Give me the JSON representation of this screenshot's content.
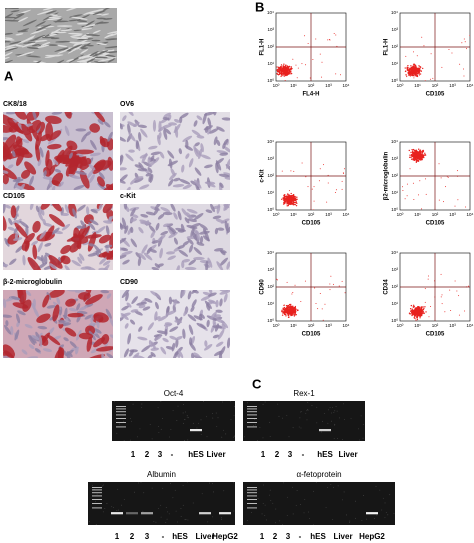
{
  "panel_a": {
    "label": "A",
    "images": [
      "CK8/18",
      "OV6",
      "CD105",
      "c-Kit",
      "β-2-microglobulin",
      "CD90"
    ]
  },
  "panel_b": {
    "label": "B",
    "ticks": [
      "10⁰",
      "10¹",
      "10²",
      "10³",
      "10⁴"
    ],
    "plots": [
      {
        "y_label": "FL1-H",
        "x_label": "FL4-H"
      },
      {
        "y_label": "FL1-H",
        "x_label": "CD105"
      },
      {
        "y_label": "c-Kit",
        "x_label": "CD105"
      },
      {
        "y_label": "β2-microglobulin",
        "x_label": "CD105"
      },
      {
        "y_label": "CD90",
        "x_label": "CD105"
      },
      {
        "y_label": "CD34",
        "x_label": "CD105"
      }
    ]
  },
  "panel_c": {
    "label": "C",
    "gels": [
      {
        "title": "Oct-4",
        "lanes": [
          "1",
          "2",
          "3",
          "-",
          "hES",
          "Liver"
        ]
      },
      {
        "title": "Rex-1",
        "lanes": [
          "1",
          "2",
          "3",
          "-",
          "hES",
          "Liver"
        ]
      },
      {
        "title": "Albumin",
        "lanes": [
          "1",
          "2",
          "3",
          "-",
          "hES",
          "Liver",
          "HepG2"
        ]
      },
      {
        "title": "α-fetoprotein",
        "lanes": [
          "1",
          "2",
          "3",
          "-",
          "hES",
          "Liver",
          "HepG2"
        ]
      }
    ]
  }
}
